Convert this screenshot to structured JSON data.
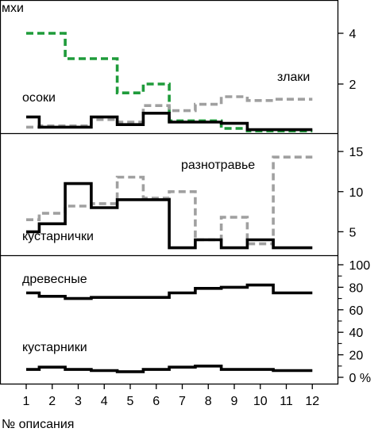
{
  "chart_data": [
    {
      "type": "line",
      "step": "mid",
      "x": [
        1,
        2,
        3,
        4,
        5,
        6,
        7,
        8,
        9,
        10,
        11,
        12
      ],
      "ylim": [
        0,
        4.5
      ],
      "yticks": [
        2,
        4
      ],
      "series": [
        {
          "name": "мхи",
          "color": "#1e9b3a",
          "style": "dashed",
          "values": [
            4.0,
            4.0,
            3.0,
            3.0,
            1.65,
            2.0,
            0.55,
            0.55,
            0.25,
            0.15,
            0.15,
            0.15
          ]
        },
        {
          "name": "злаки",
          "color": "#a0a0a0",
          "style": "dashed",
          "values": [
            0.3,
            0.35,
            0.35,
            0.6,
            0.5,
            1.15,
            0.95,
            1.2,
            1.5,
            1.35,
            1.4,
            1.4
          ]
        },
        {
          "name": "осоки",
          "color": "#000000",
          "style": "solid",
          "values": [
            0.7,
            0.3,
            0.3,
            0.7,
            0.4,
            0.85,
            0.5,
            0.5,
            0.45,
            0.2,
            0.2,
            0.2
          ]
        }
      ]
    },
    {
      "type": "line",
      "step": "mid",
      "x": [
        1,
        2,
        3,
        4,
        5,
        6,
        7,
        8,
        9,
        10,
        11,
        12
      ],
      "ylim": [
        0,
        16
      ],
      "yticks": [
        5,
        10,
        15
      ],
      "series": [
        {
          "name": "разнотравье",
          "color": "#a0a0a0",
          "style": "dashed",
          "values": [
            6.5,
            7.3,
            8.2,
            8.5,
            11.8,
            9.2,
            10.0,
            4.0,
            6.8,
            3.5,
            14.3,
            14.3
          ]
        },
        {
          "name": "кустарнички",
          "color": "#000000",
          "style": "solid",
          "values": [
            5.0,
            6.0,
            11.0,
            8.0,
            9.0,
            9.0,
            3.0,
            4.0,
            3.0,
            4.0,
            3.0,
            3.0
          ]
        }
      ]
    },
    {
      "type": "line",
      "step": "mid",
      "x": [
        1,
        2,
        3,
        4,
        5,
        6,
        7,
        8,
        9,
        10,
        11,
        12
      ],
      "ylim": [
        0,
        100
      ],
      "yticks": [
        0,
        20,
        40,
        60,
        80,
        100
      ],
      "ytick_suffix": "%",
      "series": [
        {
          "name": "древесные",
          "color": "#000000",
          "style": "solid",
          "values": [
            75,
            72,
            70,
            71,
            71,
            71,
            75,
            79,
            80,
            82,
            75,
            75
          ]
        },
        {
          "name": "кустарники",
          "color": "#000000",
          "style": "solid",
          "values": [
            7,
            9,
            7,
            6,
            5,
            7,
            9,
            10,
            7,
            7,
            6,
            6
          ]
        }
      ]
    }
  ],
  "xlabel": "№ описания",
  "xtick_labels": [
    "1",
    "2",
    "3",
    "4",
    "5",
    "6",
    "7",
    "8",
    "9",
    "10",
    "11",
    "12"
  ]
}
